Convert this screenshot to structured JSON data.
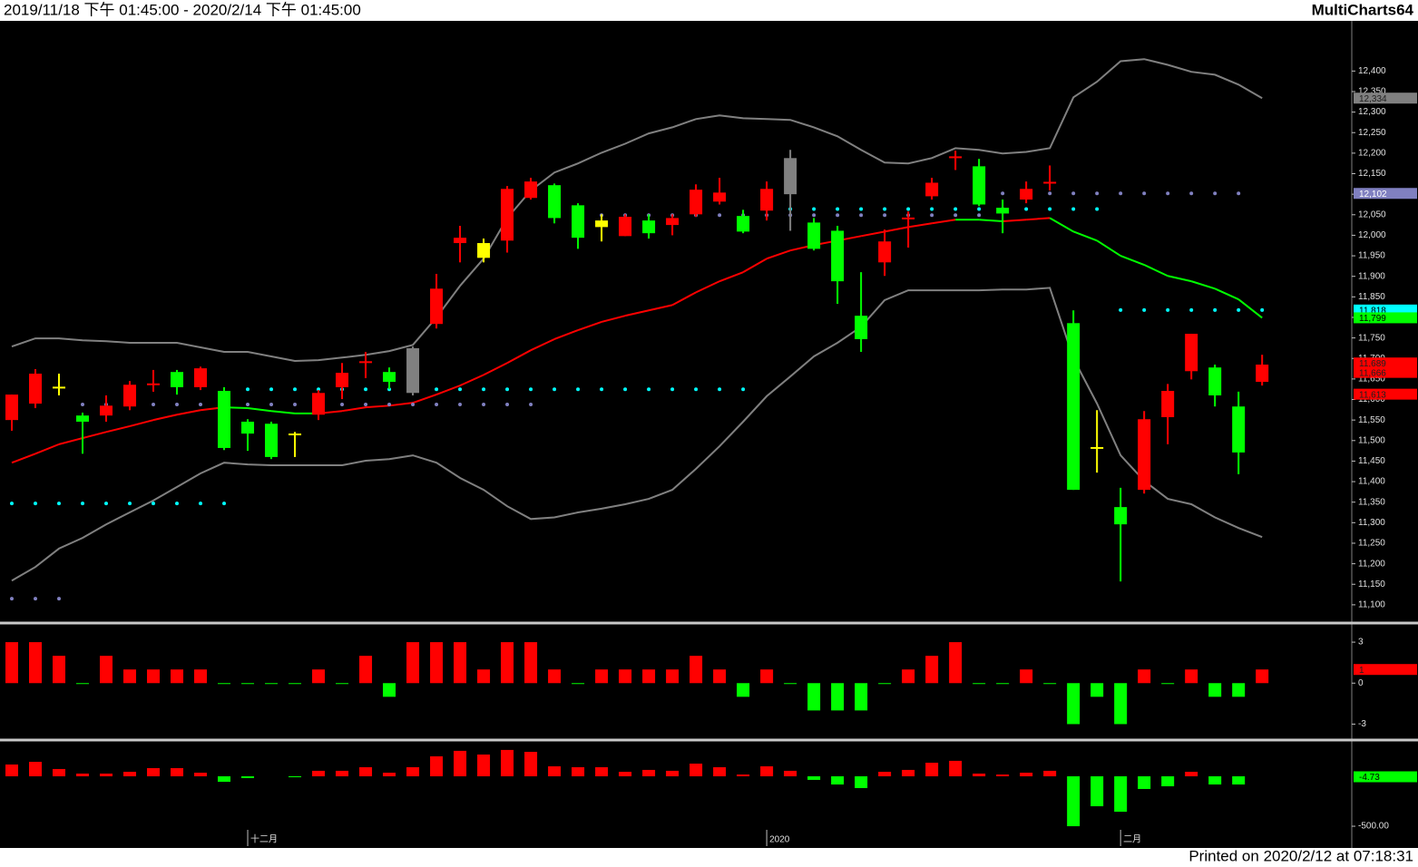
{
  "header": {
    "range": "2019/11/18 下午 01:45:00 - 2020/2/14 下午 01:45:00",
    "app": "MultiCharts64"
  },
  "footer": "Printed on 2020/2/12 at 07:18:31",
  "chart_data": [
    {
      "type": "candlestick",
      "xlim": [
        -0.5,
        56.8
      ],
      "ylim": [
        11060,
        12520
      ],
      "yticks": [
        {
          "value": 11100,
          "label": "11,100"
        },
        {
          "value": 11150,
          "label": "11,150"
        },
        {
          "value": 11200,
          "label": "11,200"
        },
        {
          "value": 11250,
          "label": "11,250"
        },
        {
          "value": 11300,
          "label": "11,300"
        },
        {
          "value": 11350,
          "label": "11,350"
        },
        {
          "value": 11400,
          "label": "11,400"
        },
        {
          "value": 11450,
          "label": "11,450"
        },
        {
          "value": 11500,
          "label": "11,500"
        },
        {
          "value": 11550,
          "label": "11,550"
        },
        {
          "value": 11600,
          "label": "11,600"
        },
        {
          "value": 11650,
          "label": "11,650"
        },
        {
          "value": 11700,
          "label": "11,700"
        },
        {
          "value": 11750,
          "label": "11,750"
        },
        {
          "value": 11800,
          "label": "11,800"
        },
        {
          "value": 11850,
          "label": "11,850"
        },
        {
          "value": 11900,
          "label": "11,900"
        },
        {
          "value": 11950,
          "label": "11,950"
        },
        {
          "value": 12000,
          "label": "12,000"
        },
        {
          "value": 12050,
          "label": "12,050"
        },
        {
          "value": 12100,
          "label": "12,100"
        },
        {
          "value": 12150,
          "label": "12,150"
        },
        {
          "value": 12200,
          "label": "12,200"
        },
        {
          "value": 12250,
          "label": "12,250"
        },
        {
          "value": 12300,
          "label": "12,300"
        },
        {
          "value": 12350,
          "label": "12,350"
        },
        {
          "value": 12400,
          "label": "12,400"
        }
      ],
      "open": [
        11550,
        11590,
        11628,
        11561,
        11561,
        11583,
        11636,
        11667,
        11630,
        11621,
        11546,
        11541,
        11517,
        11563,
        11630,
        11690,
        11667,
        11725,
        11784,
        11981,
        11981,
        11987,
        12091,
        12122,
        12073,
        12036,
        11998,
        12036,
        12025,
        12051,
        12082,
        12047,
        12060,
        12188,
        12031,
        12011,
        11804,
        11934,
        12040,
        12095,
        12189,
        12168,
        12067,
        12087,
        12127,
        11786,
        11481,
        11338,
        11380,
        11557,
        11669,
        11678,
        11583,
        11643
      ],
      "high": [
        11612,
        11674,
        11663,
        11568,
        11610,
        11645,
        11672,
        11672,
        11680,
        11630,
        11552,
        11546,
        11521,
        11623,
        11689,
        11716,
        11678,
        11729,
        11906,
        12023,
        11992,
        12120,
        12140,
        12126,
        12078,
        12051,
        12051,
        12051,
        12051,
        12124,
        12140,
        12062,
        12131,
        12208,
        12042,
        12023,
        11910,
        12014,
        12058,
        12140,
        12206,
        12186,
        12087,
        12131,
        12170,
        11817,
        11574,
        11385,
        11572,
        11638,
        11760,
        11685,
        11619,
        11709
      ],
      "low": [
        11524,
        11579,
        11610,
        11468,
        11546,
        11574,
        11619,
        11612,
        11623,
        11477,
        11475,
        11455,
        11460,
        11550,
        11601,
        11652,
        11625,
        11610,
        11773,
        11934,
        11934,
        11958,
        12087,
        12029,
        11967,
        11985,
        11998,
        11992,
        12000,
        12045,
        12075,
        12005,
        12036,
        12011,
        11963,
        11833,
        11716,
        11901,
        11970,
        12087,
        12159,
        12071,
        12005,
        12078,
        12109,
        11380,
        11422,
        11157,
        11371,
        11491,
        11649,
        11583,
        11418,
        11634
      ],
      "close": [
        11612,
        11663,
        11630,
        11546,
        11585,
        11636,
        11638,
        11630,
        11676,
        11482,
        11517,
        11460,
        11513,
        11616,
        11665,
        11692,
        11643,
        11616,
        11870,
        11994,
        11945,
        12113,
        12131,
        12042,
        11994,
        12020,
        12045,
        12005,
        12042,
        12111,
        12104,
        12009,
        12113,
        12100,
        11967,
        11888,
        11747,
        11985,
        12042,
        12128,
        12191,
        12075,
        12053,
        12113,
        12129,
        11380,
        11483,
        11296,
        11552,
        11621,
        11760,
        11610,
        11471,
        11685
      ],
      "colors": [
        "#ff0000",
        "#ff0000",
        "#ffff00",
        "#00ff00",
        "#ff0000",
        "#ff0000",
        "#ff0000",
        "#00ff00",
        "#ff0000",
        "#00ff00",
        "#00ff00",
        "#00ff00",
        "#ffff00",
        "#ff0000",
        "#ff0000",
        "#ff0000",
        "#00ff00",
        "#808080",
        "#ff0000",
        "#ff0000",
        "#ffff00",
        "#ff0000",
        "#ff0000",
        "#00ff00",
        "#00ff00",
        "#ffff00",
        "#ff0000",
        "#00ff00",
        "#ff0000",
        "#ff0000",
        "#ff0000",
        "#00ff00",
        "#ff0000",
        "#808080",
        "#00ff00",
        "#00ff00",
        "#00ff00",
        "#ff0000",
        "#ff0000",
        "#ff0000",
        "#ff0000",
        "#00ff00",
        "#00ff00",
        "#ff0000",
        "#ff0000",
        "#00ff00",
        "#ffff00",
        "#00ff00",
        "#ff0000",
        "#ff0000",
        "#ff0000",
        "#00ff00",
        "#00ff00",
        "#ff0000"
      ],
      "series": [
        {
          "color": "#808080",
          "values": [
            11729,
            11749,
            11749,
            11744,
            11742,
            11738,
            11738,
            11738,
            11727,
            11716,
            11716,
            11705,
            11694,
            11696,
            11702,
            11709,
            11718,
            11733,
            11800,
            11877,
            11943,
            12042,
            12109,
            12153,
            12175,
            12201,
            12223,
            12248,
            12263,
            12283,
            12292,
            12285,
            12283,
            12281,
            12263,
            12241,
            12208,
            12177,
            12175,
            12188,
            12212,
            12208,
            12199,
            12203,
            12212,
            12336,
            12374,
            12424,
            12429,
            12415,
            12398,
            12391,
            12367,
            12334
          ]
        },
        {
          "color": "#808080",
          "values": [
            11159,
            11192,
            11237,
            11263,
            11296,
            11325,
            11354,
            11387,
            11420,
            11446,
            11442,
            11440,
            11440,
            11440,
            11440,
            11451,
            11455,
            11464,
            11446,
            11409,
            11380,
            11340,
            11309,
            11313,
            11325,
            11334,
            11345,
            11358,
            11380,
            11431,
            11486,
            11546,
            11608,
            11656,
            11705,
            11738,
            11777,
            11842,
            11866,
            11866,
            11866,
            11866,
            11868,
            11868,
            11872,
            11700,
            11590,
            11464,
            11402,
            11358,
            11345,
            11313,
            11287,
            11265
          ]
        },
        {
          "color": "#ff0000",
          "down_color": "#00ff00",
          "values": [
            11446,
            11468,
            11491,
            11506,
            11521,
            11535,
            11550,
            11563,
            11574,
            11581,
            11579,
            11572,
            11566,
            11566,
            11572,
            11581,
            11585,
            11592,
            11612,
            11634,
            11660,
            11689,
            11720,
            11747,
            11769,
            11789,
            11804,
            11817,
            11830,
            11861,
            11888,
            11910,
            11943,
            11963,
            11976,
            11987,
            11998,
            12009,
            12020,
            12029,
            12038,
            12038,
            12034,
            12038,
            12042,
            12009,
            11987,
            11950,
            11928,
            11901,
            11888,
            11870,
            11844,
            11799
          ]
        }
      ],
      "dots": [
        {
          "color": "#00ffff",
          "values": [
            11347,
            11347,
            11347,
            11347,
            11347,
            11347,
            11347,
            11347,
            11347,
            11347,
            11625,
            11625,
            11625,
            11625,
            11625,
            11625,
            11625,
            11625,
            11625,
            11625,
            11625,
            11625,
            11625,
            11625,
            11625,
            11625,
            11625,
            11625,
            11625,
            11625,
            11625,
            11625,
            12064,
            12064,
            12064,
            12064,
            12064,
            12064,
            12064,
            12064,
            12064,
            12064,
            12064,
            12064,
            12064,
            12064,
            12064,
            11818,
            11818,
            11818,
            11818,
            11818,
            11818,
            11818
          ]
        },
        {
          "color": "#8080c0",
          "values": [
            11115,
            11115,
            11115,
            11588,
            11588,
            11588,
            11588,
            11588,
            11588,
            11588,
            11588,
            11588,
            11588,
            11588,
            11588,
            11588,
            11588,
            11588,
            11588,
            11588,
            11588,
            11588,
            11588,
            null,
            null,
            12049,
            12049,
            12049,
            12049,
            12049,
            12049,
            12049,
            12049,
            12049,
            12049,
            12049,
            12049,
            12049,
            12049,
            12049,
            12049,
            12049,
            12102,
            12102,
            12102,
            12102,
            12102,
            12102,
            12102,
            12102,
            12102,
            12102,
            12102,
            null
          ]
        }
      ],
      "tags": [
        {
          "value": 12334,
          "label": "12,334",
          "color": "#808080",
          "text_color": "#202020"
        },
        {
          "value": 12102,
          "label": "12,102",
          "color": "#8080c0",
          "text_color": "#ffffff"
        },
        {
          "value": 11818,
          "label": "11,818",
          "color": "#00ffff",
          "text_color": "#000000"
        },
        {
          "value": 11799,
          "label": "11,799",
          "color": "#00ff00",
          "text_color": "#000000"
        },
        {
          "value": 11689,
          "label": "11,689",
          "color": "#ff0000",
          "text_color": "#202020"
        },
        {
          "value": 11666,
          "label": "11,666",
          "color": "#ff0000",
          "text_color": "#202020"
        },
        {
          "value": 11613,
          "label": "11,613",
          "color": "#ff0000",
          "text_color": "#202020"
        }
      ]
    },
    {
      "type": "bar",
      "xlim": [
        -0.5,
        56.8
      ],
      "ylim": [
        -3.9,
        4.2
      ],
      "yticks": [
        3,
        0,
        -3
      ],
      "up_color": "#ff0000",
      "down_color": "#00ff00",
      "values": [
        3,
        3,
        2,
        0,
        2,
        1,
        1,
        1,
        1,
        0,
        0,
        0,
        0,
        1,
        0,
        2,
        -1,
        3,
        3,
        3,
        1,
        3,
        3,
        1,
        0,
        1,
        1,
        1,
        1,
        2,
        1,
        -1,
        1,
        0,
        -2,
        -2,
        -2,
        0,
        1,
        2,
        3,
        0,
        0,
        1,
        0,
        -3,
        -1,
        -3,
        1,
        0,
        1,
        -1,
        -1,
        1
      ],
      "tags": [
        {
          "value": 1,
          "label": "1",
          "color": "#ff0000",
          "text_color": "#202020"
        }
      ]
    },
    {
      "type": "bar",
      "xlim": [
        -0.5,
        56.8
      ],
      "ylim": [
        -536,
        345
      ],
      "yticks": [
        {
          "value": -500,
          "label": "-500.00"
        }
      ],
      "up_color": "#ff0000",
      "down_color": "#00ff00",
      "values": [
        118,
        145,
        73,
        27,
        27,
        45,
        82,
        82,
        36,
        -55,
        -18,
        null,
        -9,
        55,
        55,
        91,
        36,
        91,
        200,
        255,
        218,
        264,
        245,
        100,
        91,
        91,
        45,
        64,
        55,
        127,
        91,
        18,
        100,
        55,
        -36,
        -82,
        -118,
        45,
        64,
        136,
        155,
        27,
        18,
        36,
        55,
        -500,
        -300,
        -355,
        -127,
        -100,
        45,
        -82,
        -82,
        null
      ],
      "tags": [
        {
          "value": -4.73,
          "label": "-4.73",
          "color": "#00ff00",
          "text_color": "#000000"
        }
      ],
      "xticks": [
        {
          "value": 10,
          "label": "十二月"
        },
        {
          "value": 32,
          "label": "2020"
        },
        {
          "value": 47,
          "label": "二月"
        }
      ]
    }
  ]
}
